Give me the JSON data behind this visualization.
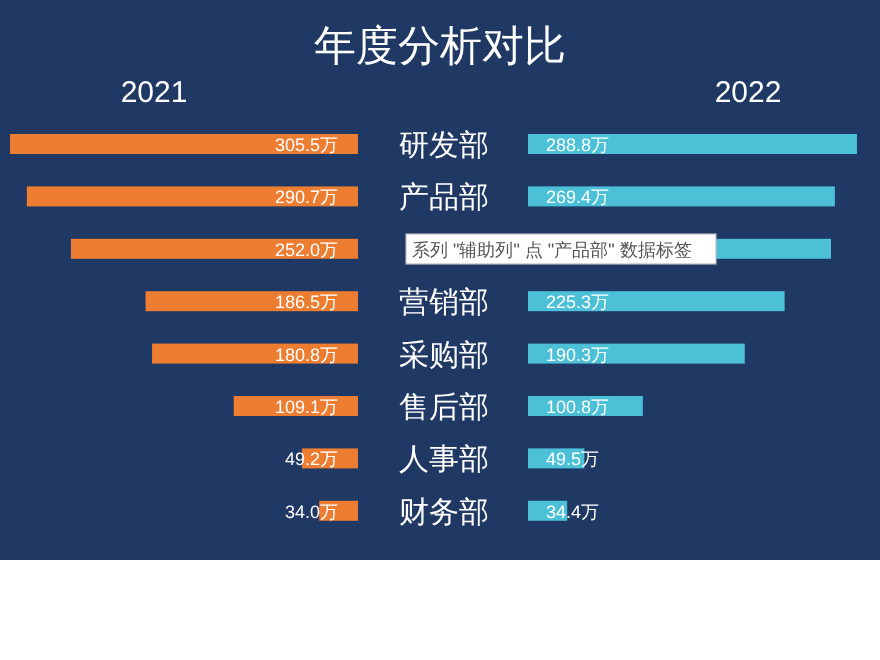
{
  "chart_data": [
    {
      "type": "bar",
      "orientation": "horizontal",
      "title": "年度分析对比",
      "categories": [
        "研发部",
        "产品部",
        null,
        "营销部",
        "采购部",
        "售后部",
        "人事部",
        "财务部"
      ],
      "series": [
        {
          "name": "2021",
          "color": "#ed7d31",
          "values": [
            305.5,
            290.7,
            252.0,
            186.5,
            180.8,
            109.1,
            49.2,
            34.0
          ],
          "value_labels": [
            "305.5万",
            "290.7万",
            "252.0万",
            "186.5万",
            "180.8万",
            "109.1万",
            "49.2万",
            "34.0万"
          ]
        }
      ]
    },
    {
      "type": "bar",
      "orientation": "horizontal",
      "categories": [
        null,
        null,
        null,
        null,
        null,
        null,
        null,
        null
      ],
      "series": [
        {
          "name": "2022",
          "color": "#4bc0d6",
          "values": [
            288.8,
            269.4,
            266,
            225.3,
            190.3,
            100.8,
            49.5,
            34.4
          ],
          "value_labels": [
            "288.8万",
            "269.4万",
            null,
            "225.3万",
            "190.3万",
            "100.8万",
            "49.5万",
            "34.4万"
          ]
        }
      ],
      "annotations": [
        "系列 \"辅助列\" 点 \"产品部\" 数据标签"
      ]
    }
  ]
}
